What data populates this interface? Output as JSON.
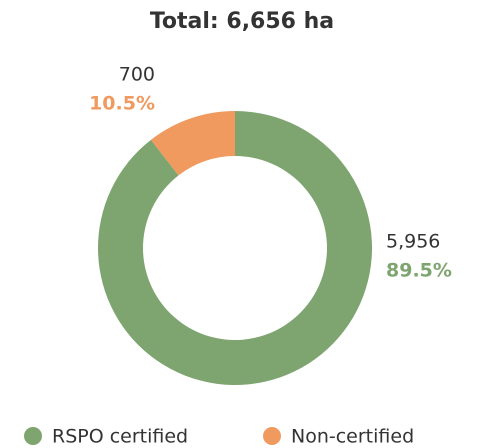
{
  "chart_data": {
    "type": "donut",
    "title": "Total: 6,656 ha",
    "categories": [
      "RSPO certified",
      "Non-certified"
    ],
    "values": [
      5956,
      700
    ],
    "value_labels": [
      "5,956",
      "700"
    ],
    "percent_labels": [
      "89.5%",
      "10.5%"
    ],
    "colors": [
      "#7ea56f",
      "#f09a60"
    ]
  }
}
